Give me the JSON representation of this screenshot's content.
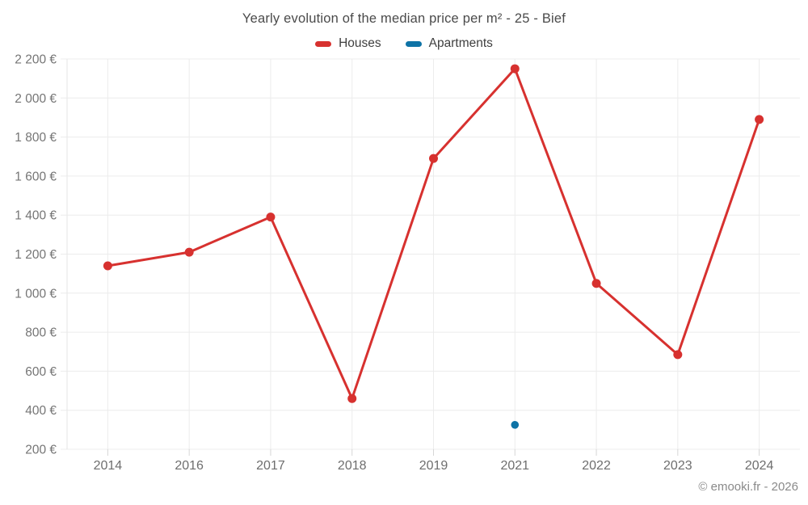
{
  "title": "Yearly evolution of the median price per m² - 25 - Bief",
  "legend": [
    {
      "label": "Houses",
      "color": "#d7312f"
    },
    {
      "label": "Apartments",
      "color": "#0e73a6"
    }
  ],
  "footer": "© emooki.fr - 2026",
  "chart_data": {
    "type": "line",
    "title": "Yearly evolution of the median price per m² - 25 - Bief",
    "categories": [
      "2014",
      "2016",
      "2017",
      "2018",
      "2019",
      "2021",
      "2022",
      "2023",
      "2024"
    ],
    "series": [
      {
        "name": "Houses",
        "color": "#d7312f",
        "values": [
          1140,
          1210,
          1390,
          460,
          1690,
          2150,
          1050,
          685,
          1890
        ]
      },
      {
        "name": "Apartments",
        "color": "#0e73a6",
        "values": [
          null,
          null,
          null,
          null,
          null,
          325,
          null,
          null,
          null
        ]
      }
    ],
    "xlabel": "",
    "ylabel": "",
    "ylim": [
      200,
      2200
    ],
    "ytick_step": 200,
    "ytick_labels": [
      "200 €",
      "400 €",
      "600 €",
      "800 €",
      "1 000 €",
      "1 200 €",
      "1 400 €",
      "1 600 €",
      "1 800 €",
      "2 000 €",
      "2 200 €"
    ],
    "grid": true,
    "legend_position": "top"
  },
  "colors": {
    "grid": "#ececec",
    "axis_border": "#e6e6e6",
    "tick": "#d6d6d6",
    "tick_label": "#757575",
    "x_label": "#6e6e6e"
  }
}
